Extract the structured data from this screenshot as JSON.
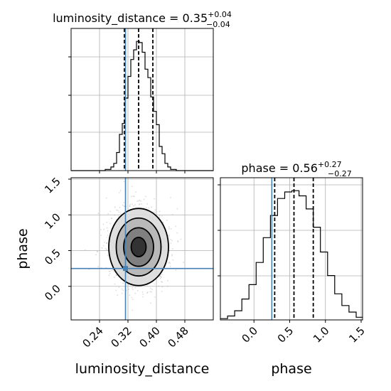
{
  "colors": {
    "truth": "#4682b4",
    "density": "#000000",
    "samples": "#9a9a9a",
    "grid": "#b0b0b0"
  },
  "titles": {
    "luminosity_distance": {
      "main": "luminosity_distance = 0.35",
      "sup": "+0.04",
      "sub": "−0.04"
    },
    "phase": {
      "main": "phase = 0.56",
      "sup": "+0.27",
      "sub": "−0.27"
    }
  },
  "labels": {
    "x_luminosity_distance": "luminosity_distance",
    "x_phase": "phase",
    "y_phase": "phase"
  },
  "chart_data": [
    {
      "type": "histogram",
      "panel": "luminosity_distance marginal",
      "xlim": [
        0.16,
        0.56
      ],
      "x_ticks": [
        0.24,
        0.32,
        0.4,
        0.48
      ],
      "bin_edges": [
        0.16,
        0.168,
        0.176,
        0.184,
        0.192,
        0.2,
        0.208,
        0.216,
        0.224,
        0.232,
        0.24,
        0.248,
        0.256,
        0.264,
        0.272,
        0.28,
        0.288,
        0.296,
        0.304,
        0.312,
        0.32,
        0.328,
        0.336,
        0.344,
        0.352,
        0.36,
        0.368,
        0.376,
        0.384,
        0.392,
        0.4,
        0.408,
        0.416,
        0.424,
        0.432,
        0.44,
        0.448,
        0.456,
        0.464,
        0.472,
        0.48,
        0.488,
        0.496,
        0.504,
        0.512,
        0.52,
        0.528,
        0.536,
        0.544,
        0.552,
        0.56
      ],
      "counts": [
        0,
        0,
        0,
        0,
        0,
        0,
        0,
        0,
        0,
        0,
        0,
        0,
        1,
        1,
        3,
        6,
        15,
        30,
        39,
        60,
        78,
        92,
        100,
        107,
        106,
        98,
        84,
        77,
        61,
        49,
        38,
        20,
        14,
        6,
        3,
        1,
        1,
        0,
        0,
        0,
        0,
        0,
        0,
        0,
        0,
        0,
        0,
        0,
        0,
        0
      ],
      "quantile_lines": [
        0.31,
        0.35,
        0.39
      ],
      "truth": 0.313
    },
    {
      "type": "histogram",
      "panel": "phase marginal",
      "xlim": [
        -0.47,
        1.52
      ],
      "x_ticks": [
        0.0,
        0.5,
        1.0,
        1.5
      ],
      "bin_edges": [
        -0.47,
        -0.37,
        -0.27,
        -0.17,
        -0.07,
        0.03,
        0.13,
        0.23,
        0.33,
        0.43,
        0.53,
        0.63,
        0.73,
        0.83,
        0.93,
        1.03,
        1.13,
        1.23,
        1.33,
        1.43,
        1.52
      ],
      "counts": [
        1,
        3,
        7,
        16,
        27,
        44,
        63,
        80,
        93,
        98,
        99,
        95,
        85,
        71,
        52,
        34,
        20,
        11,
        6,
        2
      ],
      "quantile_lines": [
        0.29,
        0.56,
        0.83
      ],
      "truth": 0.25
    },
    {
      "type": "scatter_2d_density",
      "panel": "phase vs luminosity_distance",
      "xlim": [
        0.16,
        0.56
      ],
      "ylim": [
        -0.47,
        1.52
      ],
      "x_ticks": [
        0.24,
        0.32,
        0.4,
        0.48
      ],
      "y_ticks": [
        0.0,
        0.5,
        1.0,
        1.5
      ],
      "center": {
        "x": 0.35,
        "y": 0.55
      },
      "contour_sigma_levels": [
        0.5,
        1.0,
        1.5,
        2.0
      ],
      "truth": {
        "x": 0.313,
        "y": 0.25
      }
    }
  ]
}
